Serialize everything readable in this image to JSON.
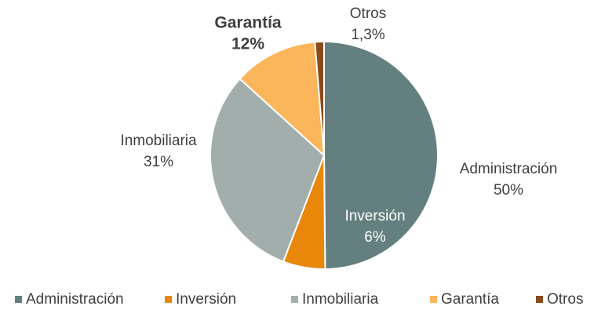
{
  "chart_data": {
    "type": "pie",
    "categories": [
      "Administración",
      "Inversión",
      "Inmobiliaria",
      "Garantía",
      "Otros"
    ],
    "values": [
      50,
      6,
      31,
      12,
      1.3
    ],
    "value_labels": [
      "50%",
      "6%",
      "31%",
      "12%",
      "1,3%"
    ],
    "colors": [
      "#647f7f",
      "#e8870a",
      "#a2aeab",
      "#fbb55a",
      "#8b4a1c"
    ],
    "legend": "bottom"
  }
}
